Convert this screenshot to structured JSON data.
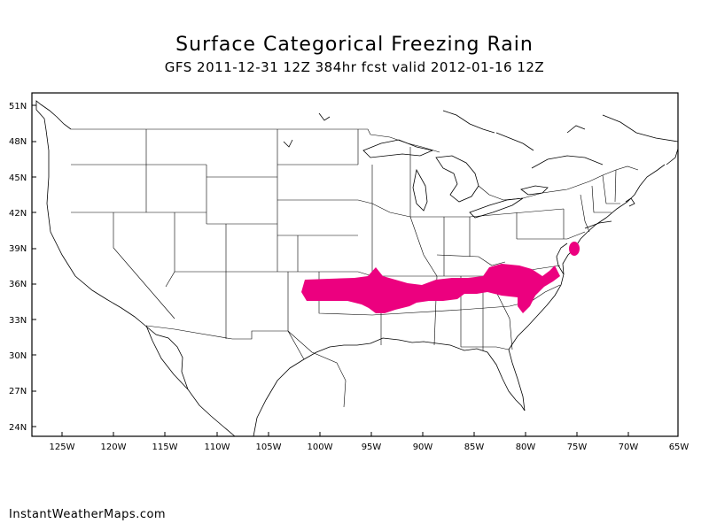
{
  "title": "Surface Categorical Freezing Rain",
  "subtitle": "GFS 2011-12-31 12Z 384hr fcst valid 2012-01-16 12Z",
  "footer": "InstantWeatherMaps.com",
  "lat_labels": [
    "51N",
    "48N",
    "45N",
    "42N",
    "39N",
    "36N",
    "33N",
    "30N",
    "27N",
    "24N"
  ],
  "lon_labels": [
    "125W",
    "120W",
    "115W",
    "110W",
    "105W",
    "100W",
    "95W",
    "90W",
    "85W",
    "80W",
    "75W",
    "70W",
    "65W"
  ],
  "colors": {
    "freezing_rain": "#ec007f",
    "lines": "#000000",
    "background": "#ffffff"
  }
}
